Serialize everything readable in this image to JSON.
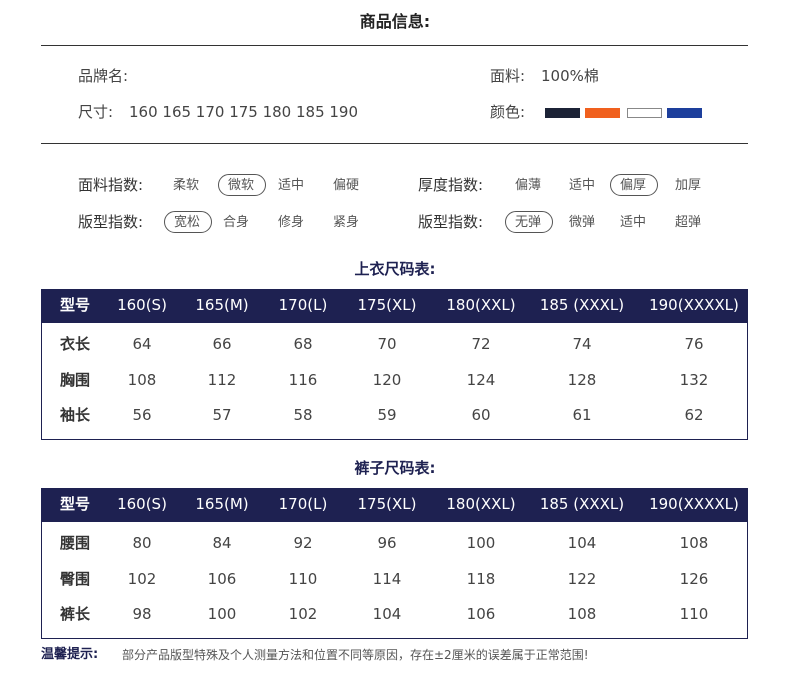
{
  "header": {
    "title": "商品信息:"
  },
  "info": {
    "brand_label": "品牌名:",
    "fabric_label": "面料:",
    "fabric_value": "100%棉",
    "size_label": "尺寸:",
    "size_value": "160 165 170 175 180 185 190",
    "color_label": "颜色:"
  },
  "indices": [
    {
      "label": "面料指数:",
      "options": [
        "柔软",
        "微软",
        "适中",
        "偏硬"
      ],
      "selected": 1
    },
    {
      "label": "厚度指数:",
      "options": [
        "偏薄",
        "适中",
        "偏厚",
        "加厚"
      ],
      "selected": 2
    },
    {
      "label": "版型指数:",
      "options": [
        "宽松",
        "合身",
        "修身",
        "紧身"
      ],
      "selected": 0
    },
    {
      "label": "版型指数:",
      "options": [
        "无弹",
        "微弹",
        "适中",
        "超弹"
      ],
      "selected": 0
    }
  ],
  "tables": [
    {
      "title": "上衣尺码表:",
      "header": [
        "型号",
        "160(S)",
        "165(M)",
        "170(L)",
        "175(XL)",
        "180(XXL)",
        "185 (XXXL)",
        "190(XXXXL)"
      ],
      "rows": [
        [
          "衣长",
          64,
          66,
          68,
          70,
          72,
          74,
          76
        ],
        [
          "胸围",
          108,
          112,
          116,
          120,
          124,
          128,
          132
        ],
        [
          "袖长",
          56,
          57,
          58,
          59,
          60,
          61,
          62
        ]
      ]
    },
    {
      "title": "裤子尺码表:",
      "header": [
        "型号",
        "160(S)",
        "165(M)",
        "170(L)",
        "175(XL)",
        "180(XXL)",
        "185 (XXXL)",
        "190(XXXXL)"
      ],
      "rows": [
        [
          "腰围",
          80,
          84,
          92,
          96,
          100,
          104,
          108
        ],
        [
          "臀围",
          102,
          106,
          110,
          114,
          118,
          122,
          126
        ],
        [
          "裤长",
          98,
          100,
          102,
          104,
          106,
          108,
          110
        ]
      ]
    }
  ],
  "tip": {
    "label": "温馨提示:",
    "text": "部分产品版型特殊及个人测量方法和位置不同等原因，存在±2厘米的误差属于正常范围!"
  }
}
